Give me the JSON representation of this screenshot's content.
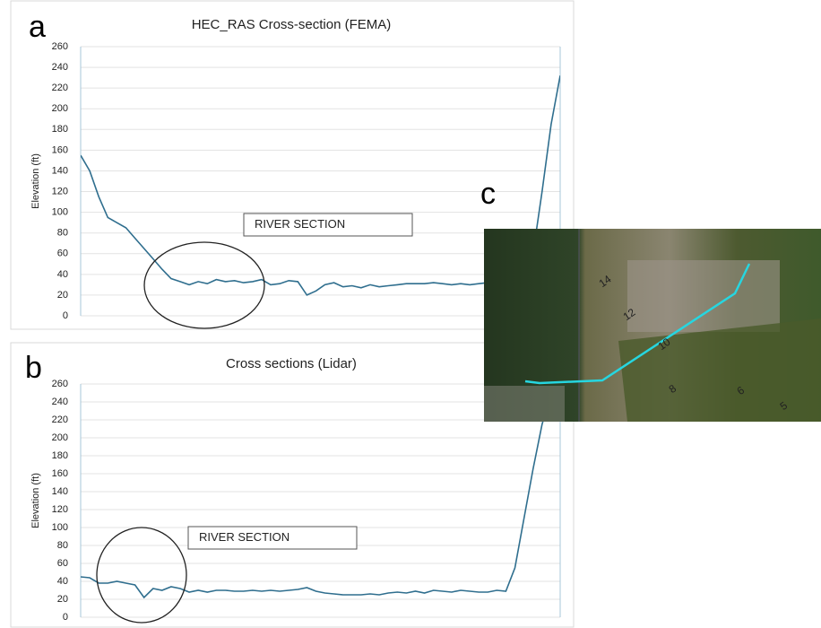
{
  "chart_data": [
    {
      "type": "line",
      "title": "HEC_RAS Cross-section (FEMA)",
      "y_label": "Elevation (ft)",
      "annotation": "RIVER SECTION",
      "color": "#2f6e8e",
      "ylim": [
        0,
        260
      ],
      "yticks": [
        0,
        20,
        40,
        60,
        80,
        100,
        120,
        140,
        160,
        180,
        200,
        220,
        240,
        260
      ],
      "grid": true,
      "values": [
        155,
        140,
        115,
        95,
        90,
        85,
        75,
        65,
        55,
        45,
        36,
        33,
        30,
        33,
        31,
        35,
        33,
        34,
        32,
        33,
        35,
        30,
        31,
        34,
        33,
        20,
        24,
        30,
        32,
        28,
        29,
        27,
        30,
        28,
        29,
        30,
        31,
        31,
        31,
        32,
        31,
        30,
        31,
        30,
        31,
        32,
        31,
        31,
        32,
        33,
        60,
        120,
        185,
        232
      ]
    },
    {
      "type": "line",
      "title": "Cross sections (Lidar)",
      "y_label": "Elevation (ft)",
      "annotation": "RIVER SECTION",
      "color": "#2f6e8e",
      "ylim": [
        0,
        260
      ],
      "yticks": [
        0,
        20,
        40,
        60,
        80,
        100,
        120,
        140,
        160,
        180,
        200,
        220,
        240,
        260
      ],
      "grid": true,
      "values": [
        45,
        44,
        38,
        38,
        40,
        38,
        36,
        22,
        32,
        30,
        34,
        32,
        28,
        30,
        28,
        30,
        30,
        29,
        29,
        30,
        29,
        30,
        29,
        30,
        31,
        33,
        29,
        27,
        26,
        25,
        25,
        25,
        26,
        25,
        27,
        28,
        27,
        29,
        27,
        30,
        29,
        28,
        30,
        29,
        28,
        28,
        30,
        29,
        55,
        110,
        165,
        215,
        250,
        258
      ]
    }
  ],
  "panel_labels": [
    "a",
    "b",
    "c"
  ],
  "map": {
    "labels": [
      "14",
      "12",
      "10",
      "8",
      "6",
      "5"
    ]
  }
}
